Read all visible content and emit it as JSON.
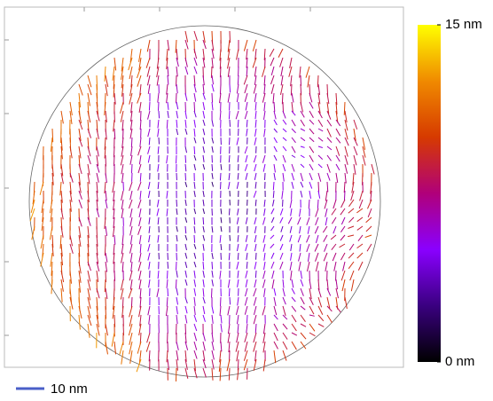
{
  "chart_data": {
    "type": "vector-field",
    "clim": [
      0,
      15
    ],
    "cticks": [
      {
        "value": 15,
        "label": "15 nm"
      },
      {
        "value": 0,
        "label": "0 nm"
      }
    ],
    "colormap": [
      "#000000",
      "#3a0080",
      "#8a00ff",
      "#b0007a",
      "#d63a00",
      "#f08a00",
      "#ffff00"
    ],
    "scale_bar": {
      "value": 10,
      "label": "10 nm",
      "color": "#4a5fc8"
    }
  }
}
